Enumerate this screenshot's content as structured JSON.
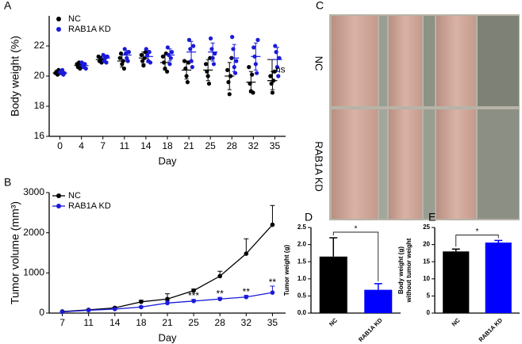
{
  "photo": {
    "label": "C",
    "row_labels": [
      "NC",
      "RAB1A KD"
    ]
  },
  "chart_data": [
    {
      "label": "A",
      "type": "dot",
      "ylabel": "Body weight (%)",
      "xlabel": "Day",
      "categories": [
        "0",
        "4",
        "7",
        "11",
        "14",
        "18",
        "21",
        "25",
        "28",
        "32",
        "35"
      ],
      "ylim": [
        16,
        24
      ],
      "yticks": [
        16,
        18,
        20,
        22
      ],
      "legend": "upper left",
      "annotation": "ns",
      "series": [
        {
          "name": "NC",
          "color": "#000000",
          "values": [
            20.2,
            20.7,
            21.1,
            21.0,
            21.2,
            20.9,
            20.4,
            20.4,
            20.0,
            19.6,
            19.7
          ],
          "errors": [
            0.1,
            0.2,
            0.2,
            0.4,
            0.4,
            0.5,
            0.6,
            0.7,
            0.9,
            0.7,
            0.6
          ],
          "points": [
            [
              20.2,
              20.3,
              20.1,
              20.4,
              20.2
            ],
            [
              20.8,
              20.6,
              20.9,
              20.5,
              20.7
            ],
            [
              21.3,
              21.0,
              21.2,
              20.9,
              21.1
            ],
            [
              21.2,
              21.5,
              20.8,
              21.0,
              20.5
            ],
            [
              21.4,
              21.0,
              20.7,
              21.2,
              21.6
            ],
            [
              21.3,
              20.9,
              20.5,
              21.5,
              20.3
            ],
            [
              21.0,
              20.5,
              20.0,
              19.6,
              20.9
            ],
            [
              20.8,
              20.3,
              20.0,
              19.5,
              21.2
            ],
            [
              20.4,
              19.6,
              18.8,
              20.0,
              21.2
            ],
            [
              20.6,
              19.5,
              19.0,
              20.1,
              18.9
            ],
            [
              20.0,
              19.5,
              18.9,
              19.7,
              20.3
            ]
          ]
        },
        {
          "name": "RAB1A KD",
          "color": "#1a1adb",
          "values": [
            20.2,
            20.7,
            21.2,
            21.4,
            21.3,
            21.4,
            21.6,
            21.6,
            21.2,
            21.3,
            21.1
          ],
          "errors": [
            0.1,
            0.2,
            0.2,
            0.3,
            0.4,
            0.4,
            0.7,
            0.6,
            0.9,
            0.9,
            0.8
          ],
          "points": [
            [
              20.3,
              20.2,
              20.4,
              20.1,
              20.2
            ],
            [
              20.9,
              20.7,
              20.6,
              20.8,
              20.5
            ],
            [
              21.4,
              21.0,
              21.2,
              20.9,
              21.3
            ],
            [
              21.8,
              21.5,
              21.2,
              21.0,
              21.6
            ],
            [
              21.8,
              21.4,
              21.0,
              21.6,
              20.9
            ],
            [
              21.9,
              21.4,
              20.8,
              21.2,
              21.6
            ],
            [
              22.4,
              21.8,
              21.0,
              20.6,
              22.0
            ],
            [
              22.5,
              21.8,
              21.2,
              20.8,
              21.5
            ],
            [
              22.6,
              21.8,
              20.6,
              20.2,
              21.0
            ],
            [
              21.9,
              21.3,
              20.8,
              20.2,
              22.4
            ],
            [
              22.0,
              21.6,
              20.6,
              20.0,
              21.2
            ]
          ]
        }
      ]
    },
    {
      "label": "B",
      "type": "line",
      "ylabel": "Tumor volume (mm³)",
      "xlabel": "Day",
      "categories": [
        "7",
        "11",
        "14",
        "18",
        "21",
        "25",
        "28",
        "32",
        "35"
      ],
      "ylim": [
        0,
        3000
      ],
      "yticks": [
        0,
        1000,
        2000,
        3000
      ],
      "legend": "upper left",
      "annotations": [
        null,
        null,
        null,
        null,
        null,
        "***",
        "**",
        "**",
        "**"
      ],
      "series": [
        {
          "name": "NC",
          "color": "#000000",
          "values": [
            40,
            80,
            130,
            280,
            350,
            560,
            920,
            1480,
            2200
          ],
          "errors": [
            10,
            15,
            20,
            40,
            130,
            40,
            120,
            370,
            480
          ]
        },
        {
          "name": "RAB1A KD",
          "color": "#1a1adb",
          "values": [
            30,
            70,
            100,
            150,
            250,
            300,
            350,
            400,
            510
          ],
          "errors": [
            10,
            10,
            20,
            20,
            50,
            40,
            40,
            40,
            160
          ]
        }
      ]
    },
    {
      "label": "D",
      "type": "bar",
      "ylabel": "Tumor weight (g)",
      "categories": [
        "NC",
        "RAB1A KD"
      ],
      "colors": [
        "#000000",
        "#0000ff"
      ],
      "values": [
        1.65,
        0.68
      ],
      "errors": [
        0.55,
        0.18
      ],
      "ylim": [
        0,
        2.5
      ],
      "yticks": [
        {
          "value": 0,
          "label": "0.0"
        },
        0.5,
        {
          "value": 1,
          "label": "1.0"
        },
        1.5,
        {
          "value": 2,
          "label": "2.0"
        },
        2.5
      ],
      "significance": "*"
    },
    {
      "label": "E",
      "type": "bar",
      "ylabel": [
        "Body weight (g)",
        "without tumor weight"
      ],
      "categories": [
        "NC",
        "RAB1A KD"
      ],
      "colors": [
        "#000000",
        "#0000ff"
      ],
      "values": [
        18,
        20.6
      ],
      "errors": [
        0.7,
        0.6
      ],
      "ylim": [
        0,
        25
      ],
      "yticks": [
        0,
        5,
        10,
        15,
        20,
        25
      ],
      "significance": "*"
    }
  ]
}
